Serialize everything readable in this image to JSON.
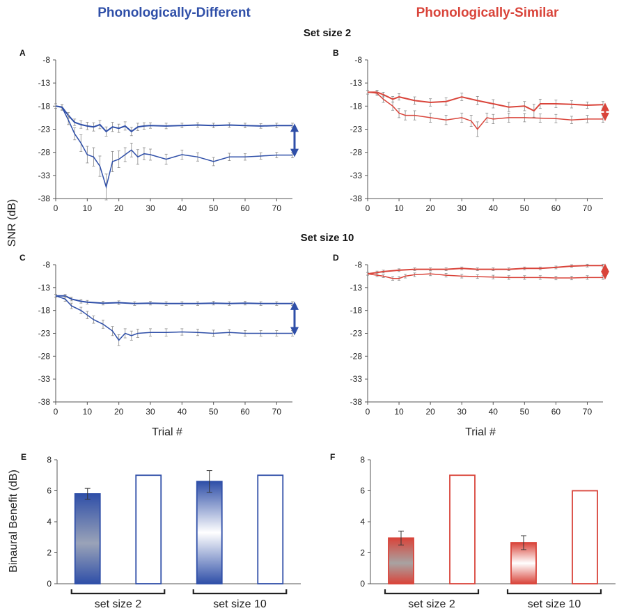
{
  "colors": {
    "blue": "#2f4fa8",
    "red": "#d9443a",
    "axis": "#555555",
    "errorbar": "#8a8a8a"
  },
  "columns": {
    "left_title": "Phonologically-Different",
    "right_title": "Phonologically-Similar"
  },
  "rows": {
    "top_title": "Set size 2",
    "bottom_title": "Set size 10"
  },
  "axes": {
    "line_ylabel": "SNR (dB)",
    "line_xlabel": "Trial #",
    "bar_ylabel": "Binaural Benefit (dB)"
  },
  "brackets": {
    "set2": "set size 2",
    "set10": "set size 10"
  },
  "chart_data": [
    {
      "panel": "A",
      "type": "line",
      "xlim": [
        0,
        75
      ],
      "ylim": [
        -38,
        -8
      ],
      "xticks": [
        0,
        10,
        20,
        30,
        40,
        50,
        60,
        70
      ],
      "yticks": [
        -8,
        -13,
        -18,
        -23,
        -28,
        -33,
        -38
      ],
      "color": "blue",
      "series": [
        {
          "x": [
            0,
            2,
            4,
            6,
            8,
            10,
            12,
            14,
            16,
            18,
            20,
            22,
            24,
            26,
            28,
            30,
            35,
            40,
            45,
            50,
            55,
            60,
            65,
            70,
            75
          ],
          "values": [
            -18,
            -18.2,
            -20,
            -21.5,
            -22,
            -22.3,
            -22.5,
            -22,
            -23.5,
            -22.5,
            -22.8,
            -22.3,
            -23.5,
            -22.5,
            -22.3,
            -22.2,
            -22.3,
            -22.2,
            -22.1,
            -22.2,
            -22.1,
            -22.2,
            -22.3,
            -22.2,
            -22.2
          ],
          "err": [
            0.5,
            0.5,
            0.6,
            0.7,
            0.8,
            0.8,
            0.9,
            0.9,
            1.0,
            1.0,
            0.9,
            0.9,
            0.9,
            0.8,
            0.7,
            0.6,
            0.6,
            0.5,
            0.5,
            0.5,
            0.5,
            0.5,
            0.5,
            0.5,
            0.5
          ]
        },
        {
          "x": [
            0,
            2,
            4,
            6,
            8,
            10,
            12,
            14,
            16,
            18,
            20,
            22,
            24,
            26,
            28,
            30,
            35,
            40,
            45,
            50,
            55,
            60,
            65,
            70,
            75
          ],
          "values": [
            -18,
            -18.3,
            -21,
            -24,
            -26,
            -28.5,
            -29,
            -31,
            -35.5,
            -30,
            -29.5,
            -28.5,
            -27.5,
            -29,
            -28.3,
            -28.5,
            -29.5,
            -28.5,
            -29,
            -30,
            -29,
            -29,
            -28.8,
            -28.6,
            -28.6
          ],
          "err": [
            0.5,
            0.6,
            1.0,
            1.3,
            1.8,
            1.8,
            2.0,
            2.2,
            2.8,
            2.2,
            1.8,
            1.5,
            1.5,
            1.6,
            1.3,
            1.2,
            1.1,
            1.0,
            0.9,
            0.9,
            0.8,
            0.7,
            0.7,
            0.6,
            0.6
          ]
        }
      ],
      "arrow": {
        "from": -22.2,
        "to": -28.6
      }
    },
    {
      "panel": "B",
      "type": "line",
      "xlim": [
        0,
        75
      ],
      "ylim": [
        -38,
        -8
      ],
      "xticks": [
        0,
        10,
        20,
        30,
        40,
        50,
        60,
        70
      ],
      "yticks": [
        -8,
        -13,
        -18,
        -23,
        -28,
        -33,
        -38
      ],
      "color": "red",
      "series": [
        {
          "x": [
            0,
            3,
            5,
            8,
            10,
            15,
            20,
            25,
            30,
            35,
            40,
            45,
            50,
            53,
            55,
            60,
            65,
            70,
            75
          ],
          "values": [
            -15,
            -15,
            -15.5,
            -16.5,
            -16,
            -16.8,
            -17.2,
            -17,
            -16,
            -16.8,
            -17.5,
            -18.2,
            -18,
            -19,
            -17.5,
            -17.5,
            -17.6,
            -17.8,
            -17.7
          ],
          "err": [
            0.4,
            0.4,
            0.5,
            0.6,
            0.7,
            0.8,
            0.8,
            0.8,
            0.8,
            0.9,
            0.9,
            1.0,
            1.0,
            1.4,
            1.0,
            0.8,
            0.8,
            0.7,
            0.7
          ]
        },
        {
          "x": [
            0,
            3,
            5,
            8,
            10,
            12,
            15,
            20,
            25,
            30,
            33,
            35,
            38,
            40,
            45,
            50,
            55,
            60,
            65,
            70,
            75
          ],
          "values": [
            -15,
            -15.2,
            -16.5,
            -18,
            -19.5,
            -20,
            -20,
            -20.5,
            -21,
            -20.5,
            -21.2,
            -23,
            -20.5,
            -20.8,
            -20.5,
            -20.5,
            -20.6,
            -20.7,
            -21,
            -20.8,
            -20.8
          ],
          "err": [
            0.4,
            0.5,
            0.7,
            0.9,
            1.0,
            1.0,
            1.0,
            1.0,
            1.0,
            1.0,
            1.2,
            1.6,
            1.0,
            1.0,
            1.0,
            0.9,
            0.9,
            0.9,
            0.8,
            0.8,
            0.7
          ]
        }
      ],
      "arrow": {
        "from": -17.7,
        "to": -20.8
      }
    },
    {
      "panel": "C",
      "type": "line",
      "xlim": [
        0,
        75
      ],
      "ylim": [
        -38,
        -8
      ],
      "xticks": [
        0,
        10,
        20,
        30,
        40,
        50,
        60,
        70
      ],
      "yticks": [
        -8,
        -13,
        -18,
        -23,
        -28,
        -33,
        -38
      ],
      "color": "blue",
      "series": [
        {
          "x": [
            0,
            3,
            5,
            8,
            10,
            15,
            20,
            25,
            30,
            35,
            40,
            45,
            50,
            55,
            60,
            65,
            70,
            75
          ],
          "values": [
            -14.8,
            -14.8,
            -15.5,
            -16,
            -16.2,
            -16.4,
            -16.3,
            -16.5,
            -16.4,
            -16.5,
            -16.5,
            -16.5,
            -16.4,
            -16.5,
            -16.4,
            -16.5,
            -16.5,
            -16.5
          ],
          "err": [
            0.3,
            0.3,
            0.4,
            0.4,
            0.4,
            0.4,
            0.4,
            0.4,
            0.4,
            0.4,
            0.4,
            0.4,
            0.4,
            0.4,
            0.4,
            0.4,
            0.4,
            0.4
          ]
        },
        {
          "x": [
            0,
            3,
            5,
            8,
            10,
            12,
            15,
            18,
            20,
            22,
            24,
            26,
            30,
            35,
            40,
            45,
            50,
            55,
            60,
            65,
            70,
            75
          ],
          "values": [
            -14.8,
            -15.5,
            -17,
            -18,
            -19,
            -20,
            -21,
            -22.5,
            -24.5,
            -23,
            -23.5,
            -23,
            -22.8,
            -22.8,
            -22.7,
            -22.8,
            -23,
            -22.8,
            -23,
            -23,
            -23,
            -23
          ],
          "err": [
            0.3,
            0.5,
            0.6,
            0.7,
            0.8,
            0.8,
            0.9,
            1.0,
            1.2,
            1.0,
            1.0,
            0.9,
            0.8,
            0.8,
            0.7,
            0.7,
            0.7,
            0.6,
            0.6,
            0.6,
            0.6,
            0.6
          ]
        }
      ],
      "arrow": {
        "from": -16.5,
        "to": -23
      }
    },
    {
      "panel": "D",
      "type": "line",
      "xlim": [
        0,
        75
      ],
      "ylim": [
        -38,
        -8
      ],
      "xticks": [
        0,
        10,
        20,
        30,
        40,
        50,
        60,
        70
      ],
      "yticks": [
        -8,
        -13,
        -18,
        -23,
        -28,
        -33,
        -38
      ],
      "color": "red",
      "series": [
        {
          "x": [
            0,
            3,
            5,
            10,
            15,
            20,
            25,
            30,
            35,
            40,
            45,
            50,
            55,
            60,
            65,
            70,
            75
          ],
          "values": [
            -10,
            -9.7,
            -9.5,
            -9.2,
            -9,
            -9,
            -9,
            -8.8,
            -9,
            -9,
            -9,
            -8.8,
            -8.8,
            -8.6,
            -8.3,
            -8.2,
            -8.2
          ],
          "err": [
            0.3,
            0.3,
            0.3,
            0.3,
            0.3,
            0.3,
            0.3,
            0.3,
            0.3,
            0.3,
            0.3,
            0.3,
            0.3,
            0.3,
            0.3,
            0.3,
            0.3
          ]
        },
        {
          "x": [
            0,
            3,
            5,
            8,
            10,
            12,
            15,
            20,
            25,
            30,
            35,
            40,
            45,
            50,
            55,
            60,
            65,
            70,
            75
          ],
          "values": [
            -10,
            -10.3,
            -10.5,
            -11,
            -11,
            -10.5,
            -10.2,
            -10,
            -10.3,
            -10.5,
            -10.6,
            -10.7,
            -10.8,
            -10.8,
            -10.8,
            -10.9,
            -10.9,
            -10.8,
            -10.8
          ],
          "err": [
            0.3,
            0.3,
            0.3,
            0.4,
            0.4,
            0.4,
            0.4,
            0.4,
            0.4,
            0.4,
            0.4,
            0.4,
            0.4,
            0.4,
            0.4,
            0.4,
            0.4,
            0.4,
            0.4
          ]
        }
      ],
      "arrow": {
        "from": -8.2,
        "to": -10.8
      }
    },
    {
      "panel": "E",
      "type": "bar",
      "ylim": [
        0,
        8
      ],
      "yticks": [
        0,
        2,
        4,
        6,
        8
      ],
      "color": "blue",
      "values": [
        5.8,
        7.0,
        6.6,
        7.0
      ],
      "errors": [
        0.35,
        0,
        0.7,
        0
      ],
      "filled": [
        true,
        false,
        true,
        false
      ],
      "groups": [
        "set size 2",
        "set size 10"
      ]
    },
    {
      "panel": "F",
      "type": "bar",
      "ylim": [
        0,
        8
      ],
      "yticks": [
        0,
        2,
        4,
        6,
        8
      ],
      "color": "red",
      "values": [
        2.95,
        7.0,
        2.65,
        6.0
      ],
      "errors": [
        0.45,
        0,
        0.45,
        0
      ],
      "filled": [
        true,
        false,
        true,
        false
      ],
      "groups": [
        "set size 2",
        "set size 10"
      ]
    }
  ]
}
